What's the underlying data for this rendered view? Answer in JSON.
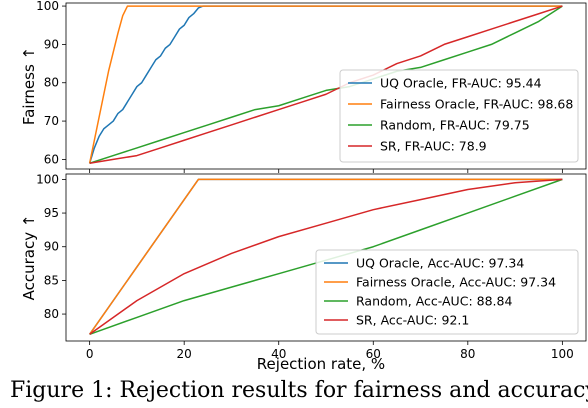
{
  "chart_data": [
    {
      "type": "line",
      "ylabel": "Fairness ↑",
      "xlabel": "",
      "xlim": [
        -5,
        105
      ],
      "ylim": [
        57.5,
        100.8
      ],
      "xticks": [
        0,
        20,
        40,
        60,
        80,
        100
      ],
      "yticks": [
        60,
        70,
        80,
        90,
        100
      ],
      "show_xtick_labels": false,
      "legend_position": "lower-right",
      "series": [
        {
          "name": "UQ Oracle, FR-AUC: 95.44",
          "color": "#1f77b4",
          "x": [
            0,
            1,
            2,
            3,
            4,
            5,
            6,
            7,
            8,
            9,
            10,
            11,
            12,
            13,
            14,
            15,
            16,
            17,
            18,
            19,
            20,
            21,
            22,
            23,
            24,
            100
          ],
          "y": [
            59,
            63,
            66,
            68,
            69,
            70,
            72,
            73,
            75,
            77,
            79,
            80,
            82,
            84,
            86,
            87,
            89,
            90,
            92,
            94,
            95,
            97,
            98,
            99.5,
            100,
            100
          ]
        },
        {
          "name": "Fairness Oracle, FR-AUC: 98.68",
          "color": "#ff7f0e",
          "x": [
            0,
            1,
            2,
            3,
            4,
            5,
            6,
            7,
            8,
            100
          ],
          "y": [
            59,
            65,
            71,
            77,
            83,
            88,
            93,
            97.5,
            100,
            100
          ]
        },
        {
          "name": "Random, FR-AUC: 79.75",
          "color": "#2ca02c",
          "x": [
            0,
            5,
            10,
            15,
            20,
            25,
            30,
            35,
            40,
            45,
            50,
            55,
            60,
            65,
            70,
            75,
            80,
            85,
            90,
            95,
            100
          ],
          "y": [
            59,
            61,
            63,
            65,
            67,
            69,
            71,
            73,
            74,
            76,
            78,
            79,
            81,
            83,
            84,
            86,
            88,
            90,
            93,
            96,
            100
          ]
        },
        {
          "name": "SR, FR-AUC: 78.9",
          "color": "#d62728",
          "x": [
            0,
            5,
            10,
            15,
            20,
            25,
            30,
            35,
            40,
            45,
            50,
            55,
            60,
            65,
            70,
            75,
            80,
            85,
            90,
            95,
            100
          ],
          "y": [
            59,
            60,
            61,
            63,
            65,
            67,
            69,
            71,
            73,
            75,
            77,
            80,
            82,
            85,
            87,
            90,
            92,
            94,
            96,
            98,
            100
          ]
        }
      ]
    },
    {
      "type": "line",
      "ylabel": "Accuracy ↑",
      "xlabel": "Rejection rate, %",
      "xlim": [
        -5,
        105
      ],
      "ylim": [
        76.0,
        100.8
      ],
      "xticks": [
        0,
        20,
        40,
        60,
        80,
        100
      ],
      "yticks": [
        80,
        85,
        90,
        95,
        100
      ],
      "show_xtick_labels": true,
      "legend_position": "lower-right",
      "series": [
        {
          "name": "UQ Oracle, Acc-AUC: 97.34",
          "color": "#1f77b4",
          "x": [
            0,
            23,
            100
          ],
          "y": [
            77,
            100,
            100
          ]
        },
        {
          "name": "Fairness Oracle, Acc-AUC: 97.34",
          "color": "#ff7f0e",
          "x": [
            0,
            23,
            100
          ],
          "y": [
            77,
            100,
            100
          ]
        },
        {
          "name": "Random, Acc-AUC: 88.84",
          "color": "#2ca02c",
          "x": [
            0,
            10,
            20,
            30,
            40,
            50,
            60,
            70,
            80,
            90,
            100
          ],
          "y": [
            77,
            79.5,
            82,
            84,
            86,
            88,
            90,
            92.5,
            95,
            97.5,
            100
          ]
        },
        {
          "name": "SR, Acc-AUC: 92.1",
          "color": "#d62728",
          "x": [
            0,
            10,
            20,
            30,
            40,
            50,
            60,
            70,
            80,
            90,
            100
          ],
          "y": [
            77,
            82,
            86,
            89,
            91.5,
            93.5,
            95.5,
            97,
            98.5,
            99.5,
            100
          ]
        }
      ]
    }
  ],
  "caption": "Figure 1: Rejection results for fairness and accuracy"
}
